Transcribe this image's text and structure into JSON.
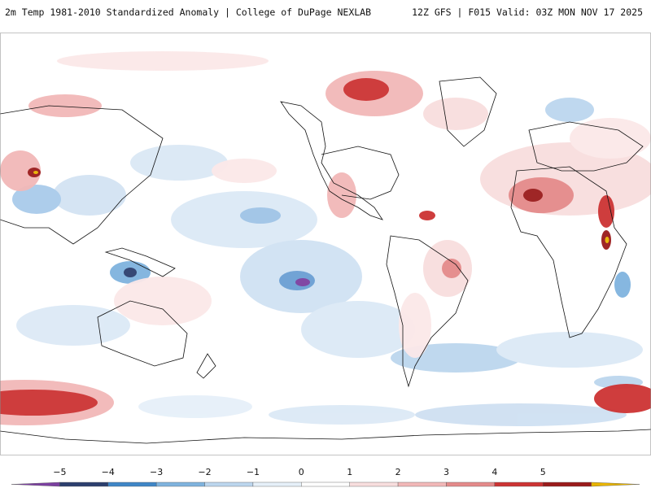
{
  "header": {
    "left_title": "2m Temp 1981-2010 Standardized Anomaly | College of DuPage NEXLAB",
    "right_title": "12Z GFS | F015 Valid: 03Z MON NOV 17 2025"
  },
  "map": {
    "variable": "2m temperature standardized anomaly",
    "projection": "global cylindrical (Pacific-centered)"
  },
  "legend": {
    "ticks": [
      "−5",
      "−4",
      "−3",
      "−2",
      "−1",
      "0",
      "1",
      "2",
      "3",
      "4",
      "5"
    ],
    "colors": [
      "#7b3fa0",
      "#2c3f6e",
      "#3f86c6",
      "#7fb3de",
      "#bcd6ee",
      "#e6f0f9",
      "#ffffff",
      "#f8dede",
      "#f2b8b8",
      "#e48a8a",
      "#cc3333",
      "#9a1b1b",
      "#e8b400"
    ]
  }
}
